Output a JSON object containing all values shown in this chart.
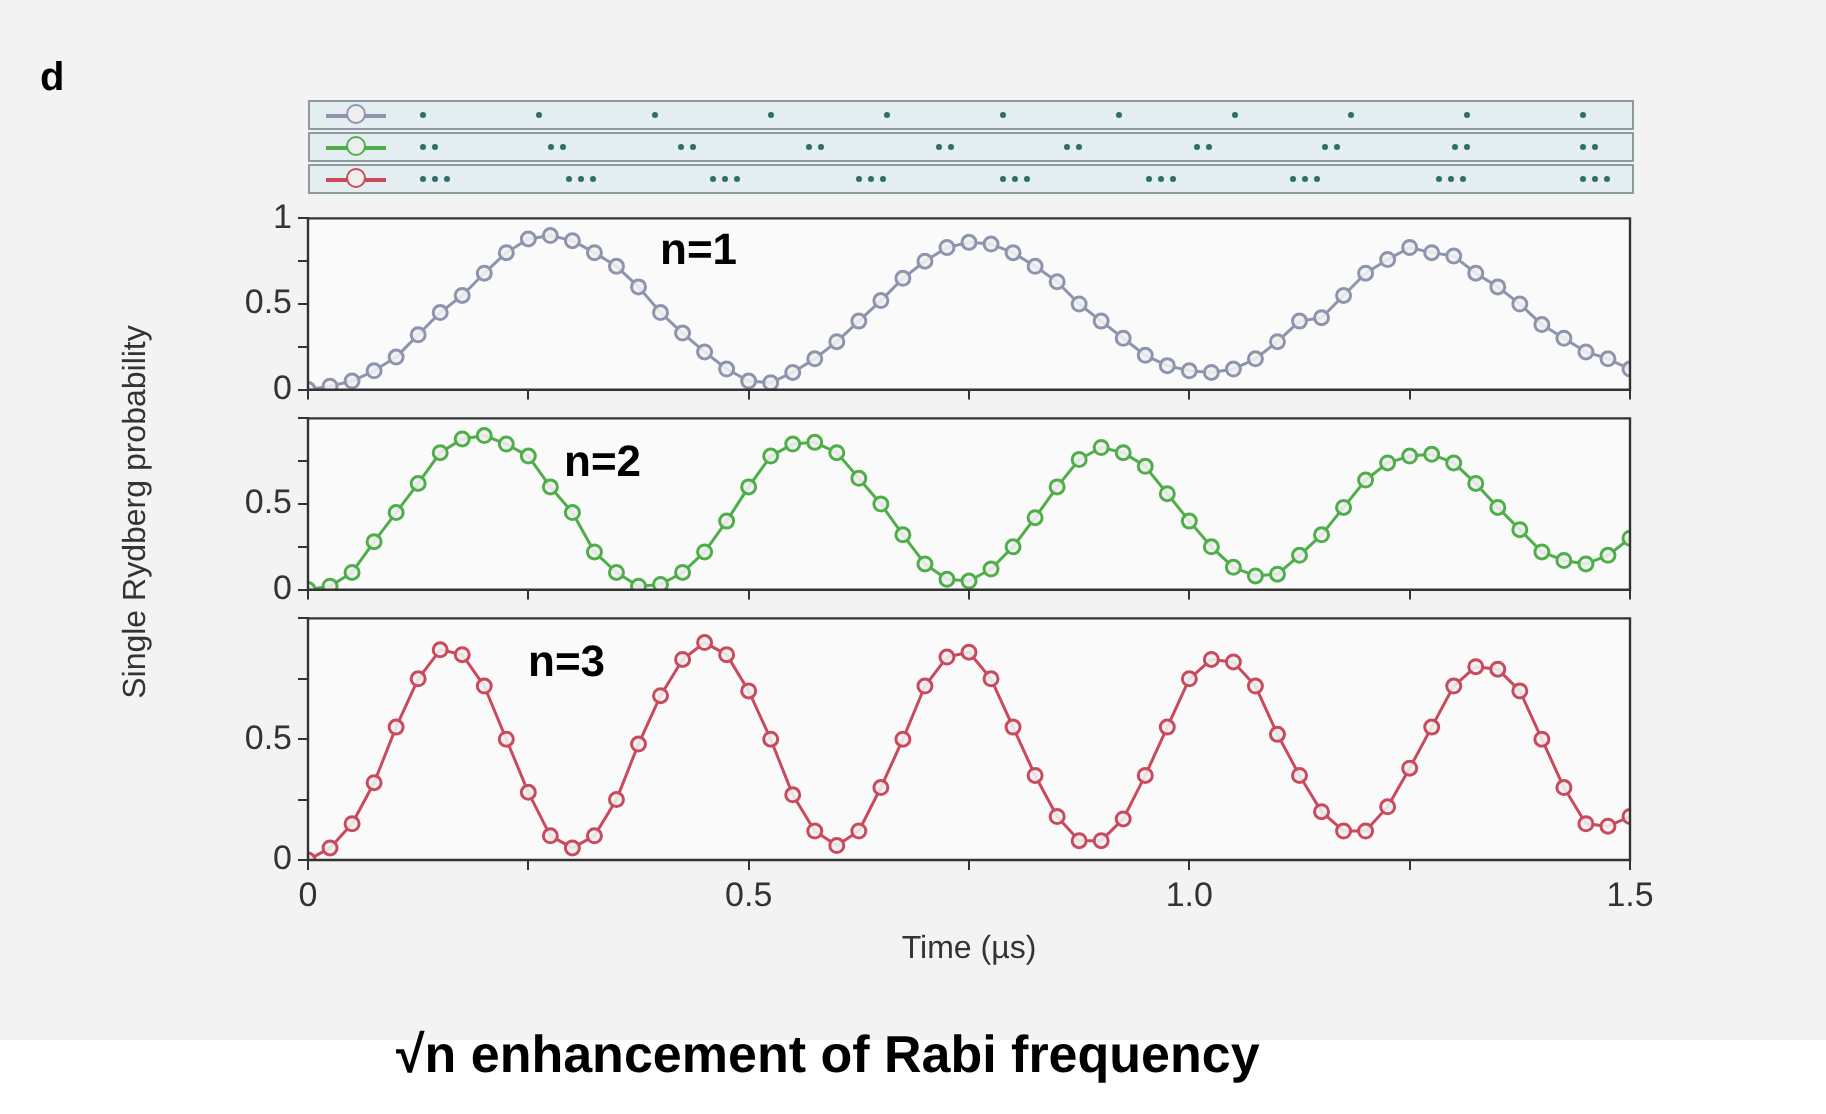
{
  "chart_data": [
    {
      "type": "line",
      "annotations": [
        "d",
        "n=1"
      ],
      "x": [
        0,
        0.025,
        0.05,
        0.075,
        0.1,
        0.125,
        0.15,
        0.175,
        0.2,
        0.225,
        0.25,
        0.275,
        0.3,
        0.325,
        0.35,
        0.375,
        0.4,
        0.425,
        0.45,
        0.475,
        0.5,
        0.525,
        0.55,
        0.575,
        0.6,
        0.625,
        0.65,
        0.675,
        0.7,
        0.725,
        0.75,
        0.775,
        0.8,
        0.825,
        0.85,
        0.875,
        0.9,
        0.925,
        0.95,
        0.975,
        1.0,
        1.025,
        1.05,
        1.075,
        1.1,
        1.125,
        1.15,
        1.175,
        1.2,
        1.225,
        1.25,
        1.275,
        1.3,
        1.325,
        1.35,
        1.375,
        1.4,
        1.425,
        1.45,
        1.475,
        1.5
      ],
      "series": [
        {
          "color": "#8e94ad",
          "values": [
            0.0,
            0.02,
            0.05,
            0.11,
            0.19,
            0.32,
            0.45,
            0.55,
            0.68,
            0.8,
            0.88,
            0.9,
            0.87,
            0.8,
            0.72,
            0.6,
            0.45,
            0.33,
            0.22,
            0.12,
            0.05,
            0.04,
            0.1,
            0.18,
            0.28,
            0.4,
            0.52,
            0.65,
            0.75,
            0.83,
            0.86,
            0.85,
            0.8,
            0.72,
            0.63,
            0.5,
            0.4,
            0.3,
            0.2,
            0.14,
            0.11,
            0.1,
            0.12,
            0.18,
            0.28,
            0.4,
            0.42,
            0.55,
            0.68,
            0.76,
            0.83,
            0.8,
            0.78,
            0.68,
            0.6,
            0.5,
            0.38,
            0.3,
            0.22,
            0.18,
            0.12
          ]
        }
      ],
      "xlim": [
        0,
        1.5
      ],
      "xticks": [
        0,
        0.25,
        0.5,
        0.75,
        1,
        1.25,
        1.5
      ],
      "ylim": [
        0,
        1
      ],
      "yticks": [
        0,
        {
          "value": 0.25,
          "label": null
        },
        0.5,
        {
          "value": 0.75,
          "label": null
        },
        1
      ],
      "tick_labels": "y",
      "marker": "circle",
      "legend": false
    },
    {
      "type": "line",
      "ylabel": "Single Rydberg probability",
      "annotations": [
        "n=2"
      ],
      "x": [
        0,
        0.025,
        0.05,
        0.075,
        0.1,
        0.125,
        0.15,
        0.175,
        0.2,
        0.225,
        0.25,
        0.275,
        0.3,
        0.325,
        0.35,
        0.375,
        0.4,
        0.425,
        0.45,
        0.475,
        0.5,
        0.525,
        0.55,
        0.575,
        0.6,
        0.625,
        0.65,
        0.675,
        0.7,
        0.725,
        0.75,
        0.775,
        0.8,
        0.825,
        0.85,
        0.875,
        0.9,
        0.925,
        0.95,
        0.975,
        1.0,
        1.025,
        1.05,
        1.075,
        1.1,
        1.125,
        1.15,
        1.175,
        1.2,
        1.225,
        1.25,
        1.275,
        1.3,
        1.325,
        1.35,
        1.375,
        1.4,
        1.425,
        1.45,
        1.475,
        1.5
      ],
      "series": [
        {
          "color": "#4fae4a",
          "values": [
            0.0,
            0.02,
            0.1,
            0.28,
            0.45,
            0.62,
            0.8,
            0.88,
            0.9,
            0.85,
            0.78,
            0.6,
            0.45,
            0.22,
            0.1,
            0.02,
            0.03,
            0.1,
            0.22,
            0.4,
            0.6,
            0.78,
            0.85,
            0.86,
            0.8,
            0.65,
            0.5,
            0.32,
            0.15,
            0.06,
            0.05,
            0.12,
            0.25,
            0.42,
            0.6,
            0.76,
            0.83,
            0.8,
            0.72,
            0.56,
            0.4,
            0.25,
            0.13,
            0.08,
            0.09,
            0.2,
            0.32,
            0.48,
            0.64,
            0.74,
            0.78,
            0.79,
            0.74,
            0.62,
            0.48,
            0.35,
            0.22,
            0.17,
            0.15,
            0.2,
            0.3
          ]
        }
      ],
      "xlim": [
        0,
        1.5
      ],
      "xticks": [
        0,
        0.25,
        0.5,
        0.75,
        1,
        1.25,
        1.5
      ],
      "ylim": [
        0,
        1
      ],
      "yticks": [
        0,
        {
          "value": 0.25,
          "label": null
        },
        0.5,
        {
          "value": 0.75,
          "label": null
        },
        {
          "value": 1,
          "label": null
        }
      ],
      "tick_labels": "y",
      "marker": "circle",
      "legend": false
    },
    {
      "type": "line",
      "xlabel": "Time (µs)",
      "annotations": [
        "n=3",
        "√n  enhancement of Rabi frequency"
      ],
      "x": [
        0,
        0.025,
        0.05,
        0.075,
        0.1,
        0.125,
        0.15,
        0.175,
        0.2,
        0.225,
        0.25,
        0.275,
        0.3,
        0.325,
        0.35,
        0.375,
        0.4,
        0.425,
        0.45,
        0.475,
        0.5,
        0.525,
        0.55,
        0.575,
        0.6,
        0.625,
        0.65,
        0.675,
        0.7,
        0.725,
        0.75,
        0.775,
        0.8,
        0.825,
        0.85,
        0.875,
        0.9,
        0.925,
        0.95,
        0.975,
        1.0,
        1.025,
        1.05,
        1.075,
        1.1,
        1.125,
        1.15,
        1.175,
        1.2,
        1.225,
        1.25,
        1.275,
        1.3,
        1.325,
        1.35,
        1.375,
        1.4,
        1.425,
        1.45,
        1.475,
        1.5
      ],
      "series": [
        {
          "color": "#c94a5c",
          "values": [
            0.0,
            0.05,
            0.15,
            0.32,
            0.55,
            0.75,
            0.87,
            0.85,
            0.72,
            0.5,
            0.28,
            0.1,
            0.05,
            0.1,
            0.25,
            0.48,
            0.68,
            0.83,
            0.9,
            0.85,
            0.7,
            0.5,
            0.27,
            0.12,
            0.06,
            0.12,
            0.3,
            0.5,
            0.72,
            0.84,
            0.86,
            0.75,
            0.55,
            0.35,
            0.18,
            0.08,
            0.08,
            0.17,
            0.35,
            0.55,
            0.75,
            0.83,
            0.82,
            0.72,
            0.52,
            0.35,
            0.2,
            0.12,
            0.12,
            0.22,
            0.38,
            0.55,
            0.72,
            0.8,
            0.79,
            0.7,
            0.5,
            0.3,
            0.15,
            0.14,
            0.18
          ]
        }
      ],
      "xlim": [
        0,
        1.5
      ],
      "xticks": [
        0,
        {
          "value": 0.25,
          "label": null
        },
        0.5,
        {
          "value": 0.75,
          "label": null
        },
        {
          "value": 1,
          "label": "1.0"
        },
        {
          "value": 1.25,
          "label": null
        },
        1.5
      ],
      "ylim": [
        0,
        1
      ],
      "yticks": [
        0,
        {
          "value": 0.25,
          "label": null
        },
        0.5,
        {
          "value": 0.75,
          "label": null
        },
        {
          "value": 1,
          "label": null
        }
      ],
      "marker": "circle",
      "legend": false
    }
  ]
}
